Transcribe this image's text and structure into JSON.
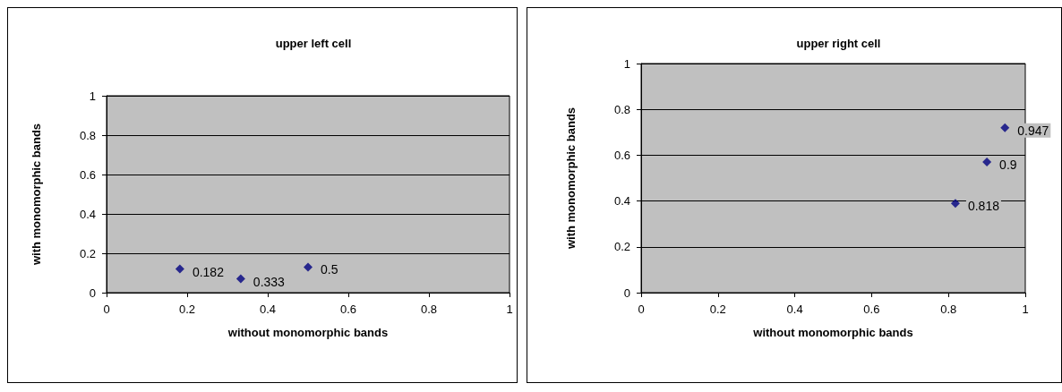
{
  "chart_data": [
    {
      "type": "scatter",
      "title": "upper left cell",
      "xlabel": "without monomorphic bands",
      "ylabel": "with monomorphic bands",
      "x": [
        0.182,
        0.333,
        0.5
      ],
      "values": [
        0.12,
        0.07,
        0.13
      ],
      "color": "#000080",
      "marker": "diamond",
      "xlim": [
        0,
        1
      ],
      "ylim": [
        0,
        1
      ],
      "xticks": [
        0,
        0.2,
        0.4,
        0.6,
        0.8,
        1
      ],
      "yticks": [
        0,
        0.2,
        0.4,
        0.6,
        0.8,
        1
      ],
      "grid": "y",
      "annotations": [
        {
          "text": "0.182",
          "x": 0.182,
          "y": 0.12
        },
        {
          "text": "0.333",
          "x": 0.333,
          "y": 0.07
        },
        {
          "text": "0.5",
          "x": 0.5,
          "y": 0.13
        }
      ]
    },
    {
      "type": "scatter",
      "title": "upper right cell",
      "xlabel": "without monomorphic bands",
      "ylabel": "with monomorphic bands",
      "x": [
        0.818,
        0.9,
        0.947
      ],
      "values": [
        0.39,
        0.57,
        0.72
      ],
      "color": "#000080",
      "marker": "diamond",
      "xlim": [
        0,
        1
      ],
      "ylim": [
        0,
        1
      ],
      "xticks": [
        0,
        0.2,
        0.4,
        0.6,
        0.8,
        1
      ],
      "yticks": [
        0,
        0.2,
        0.4,
        0.6,
        0.8,
        1
      ],
      "grid": "y",
      "annotations": [
        {
          "text": "0.818",
          "x": 0.818,
          "y": 0.39
        },
        {
          "text": "0.9",
          "x": 0.9,
          "y": 0.57
        },
        {
          "text": "0.947",
          "x": 0.947,
          "y": 0.72
        }
      ]
    }
  ]
}
